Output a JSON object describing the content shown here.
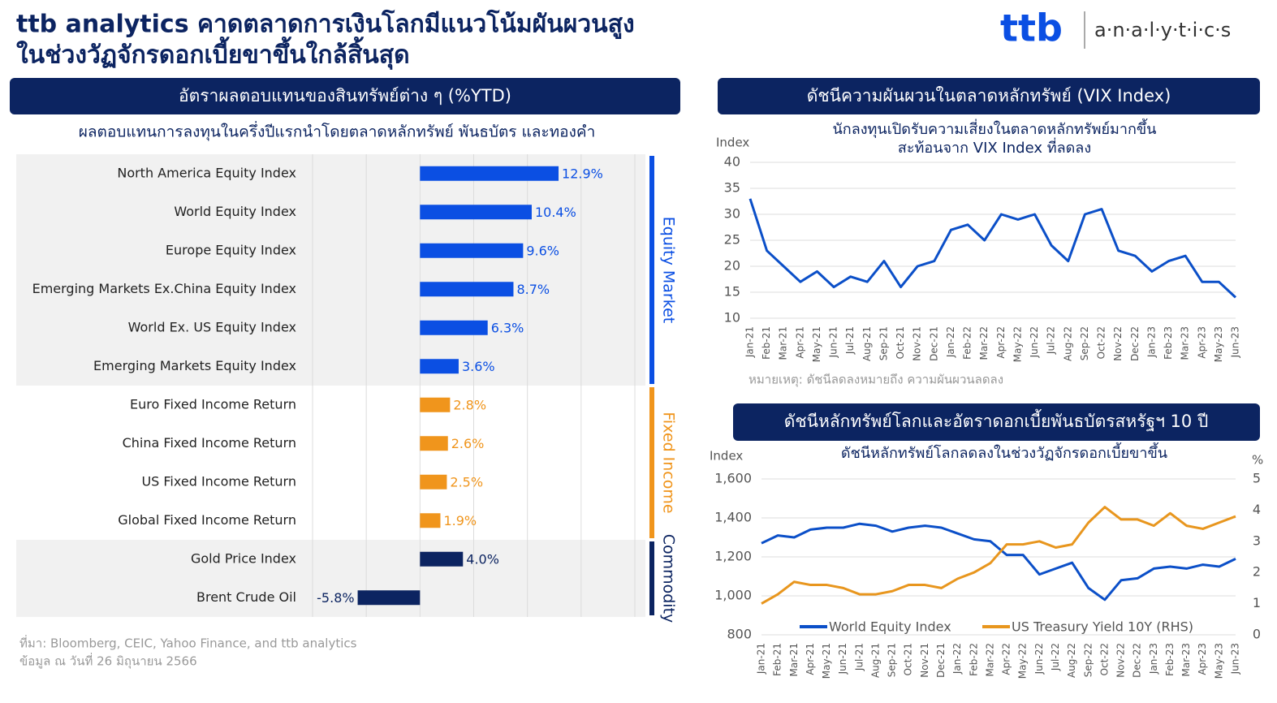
{
  "header": {
    "title": [
      "ttb analytics คาดตลาดการเงินโลกมีแนวโน้มผันผวนสูง",
      "ในช่วงวัฏจักรดอกเบี้ยขาขึ้นใกล้สิ้นสุด"
    ],
    "logo_mark": "ttb",
    "logo_text": "a·n·a·l·y·t·i·c·s"
  },
  "footer": {
    "source": "ที่มา: Bloomberg, CEIC, Yahoo Finance, and ttb analytics",
    "date": "ข้อมูล ณ วันที่ 26 มิถุนายน 2566"
  },
  "chart_data": [
    {
      "type": "hbar",
      "title": "อัตราผลตอบแทนของสินทรัพย์ต่าง ๆ (%YTD)",
      "subtitle": "ผลตอบแทนการลงทุนในครึ่งปีแรกนำโดยตลาดหลักทรัพย์ พันธบัตร และทองคำ",
      "xlim": [
        -10,
        20
      ],
      "xticks": [
        -10,
        -5,
        0,
        5,
        10,
        15,
        20
      ],
      "grid": true,
      "series": [
        {
          "name": "Equity Market",
          "color": "#0b4fe3",
          "categories": [
            "North America Equity Index",
            "World Equity Index",
            "Europe Equity Index",
            "Emerging Markets Ex.China Equity Index",
            "World Ex. US Equity Index",
            "Emerging Markets Equity Index"
          ],
          "values": [
            12.9,
            10.4,
            9.6,
            8.7,
            6.3,
            3.6
          ],
          "value_labels": [
            "12.9%",
            "10.4%",
            "9.6%",
            "8.7%",
            "6.3%",
            "3.6%"
          ]
        },
        {
          "name": "Fixed Income",
          "color": "#f0951c",
          "categories": [
            "Euro Fixed Income Return",
            "China Fixed Income Return",
            "US Fixed Income Return",
            "Global Fixed Income Return"
          ],
          "values": [
            2.8,
            2.6,
            2.5,
            1.9
          ],
          "value_labels": [
            "2.8%",
            "2.6%",
            "2.5%",
            "1.9%"
          ]
        },
        {
          "name": "Commodity",
          "color": "#0c2461",
          "categories": [
            "Gold Price Index",
            "Brent Crude Oil"
          ],
          "values": [
            4.0,
            -5.8
          ],
          "value_labels": [
            "4.0%",
            "-5.8%"
          ]
        }
      ]
    },
    {
      "type": "line",
      "title": "ดัชนีความผันผวนในตลาดหลักทรัพย์ (VIX Index)",
      "subtitle": [
        "นักลงทุนเปิดรับความเสี่ยงในตลาดหลักทรัพย์มากขึ้น",
        "สะท้อนจาก VIX Index ที่ลดลง"
      ],
      "y_label": "Index",
      "note": "หมายเหตุ: ดัชนีลดลงหมายถึง ความผันผวนลดลง",
      "categories": [
        "Jan-21",
        "Feb-21",
        "Mar-21",
        "Apr-21",
        "May-21",
        "Jun-21",
        "Jul-21",
        "Aug-21",
        "Sep-21",
        "Oct-21",
        "Nov-21",
        "Dec-21",
        "Jan-22",
        "Feb-22",
        "Mar-22",
        "Apr-22",
        "May-22",
        "Jun-22",
        "Jul-22",
        "Aug-22",
        "Sep-22",
        "Oct-22",
        "Nov-22",
        "Dec-22",
        "Jan-23",
        "Feb-23",
        "Mar-23",
        "Apr-23",
        "May-23",
        "Jun-23"
      ],
      "values": [
        33,
        23,
        20,
        17,
        19,
        16,
        18,
        17,
        21,
        16,
        20,
        21,
        27,
        28,
        25,
        30,
        29,
        30,
        24,
        21,
        30,
        31,
        23,
        22,
        19,
        21,
        22,
        17,
        17,
        14
      ],
      "color": "#0b4fc8",
      "ylim": [
        10,
        40
      ],
      "yticks": [
        10,
        15,
        20,
        25,
        30,
        35,
        40
      ],
      "grid": true
    },
    {
      "type": "line",
      "title": "ดัชนีหลักทรัพย์โลกและอัตราดอกเบี้ยพันธบัตรสหรัฐฯ 10 ปี",
      "subtitle": "ดัชนีหลักทรัพย์โลกลดลงในช่วงวัฏจักรดอกเบี้ยขาขึ้น",
      "y_label": "Index",
      "y2_label": "%",
      "categories": [
        "Jan-21",
        "Feb-21",
        "Mar-21",
        "Apr-21",
        "May-21",
        "Jun-21",
        "Jul-21",
        "Aug-21",
        "Sep-21",
        "Oct-21",
        "Nov-21",
        "Dec-21",
        "Jan-22",
        "Feb-22",
        "Mar-22",
        "Apr-22",
        "May-22",
        "Jun-22",
        "Jul-22",
        "Aug-22",
        "Sep-22",
        "Oct-22",
        "Nov-22",
        "Dec-22",
        "Jan-23",
        "Feb-23",
        "Mar-23",
        "Apr-23",
        "May-23",
        "Jun-23"
      ],
      "series": [
        {
          "name": "World Equity Index",
          "color": "#0b4fc8",
          "values": [
            1270,
            1310,
            1300,
            1340,
            1350,
            1350,
            1370,
            1360,
            1330,
            1350,
            1360,
            1350,
            1320,
            1290,
            1280,
            1210,
            1210,
            1110,
            1140,
            1170,
            1040,
            980,
            1080,
            1090,
            1140,
            1150,
            1140,
            1160,
            1150,
            1190
          ]
        },
        {
          "name": "US Treasury Yield 10Y (RHS)",
          "color": "#e8961e",
          "axis": "y2",
          "values": [
            1.0,
            1.3,
            1.7,
            1.6,
            1.6,
            1.5,
            1.3,
            1.3,
            1.4,
            1.6,
            1.6,
            1.5,
            1.8,
            2.0,
            2.3,
            2.9,
            2.9,
            3.0,
            2.8,
            2.9,
            3.6,
            4.1,
            3.7,
            3.7,
            3.5,
            3.9,
            3.5,
            3.4,
            3.6,
            3.8
          ]
        }
      ],
      "ylim": [
        800,
        1600
      ],
      "yticks": [
        {
          "value": 800,
          "label": "800"
        },
        {
          "value": 1000,
          "label": "1,000"
        },
        {
          "value": 1200,
          "label": "1,200"
        },
        {
          "value": 1400,
          "label": "1,400"
        },
        {
          "value": 1600,
          "label": "1,600"
        }
      ],
      "y2lim": [
        0,
        5
      ],
      "y2ticks": [
        0,
        1,
        2,
        3,
        4,
        5
      ],
      "grid": true,
      "legend": "bottom"
    }
  ]
}
